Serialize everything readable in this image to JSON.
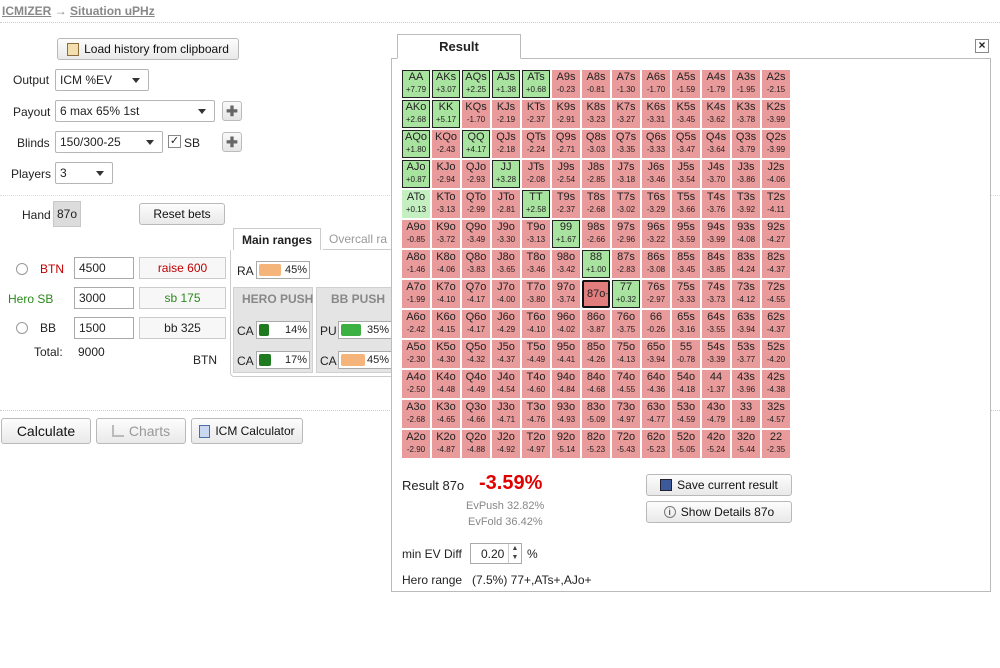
{
  "breadcrumb": {
    "home": "ICMIZER",
    "arrow": "→",
    "current": "Situation uPHz"
  },
  "left": {
    "load_button": "Load history from clipboard",
    "output_label": "Output",
    "output_value": "ICM %EV",
    "payout_label": "Payout",
    "payout_value": "6 max 65% 1st",
    "blinds_label": "Blinds",
    "blinds_value": "150/300-25",
    "sb_check_label": "SB",
    "players_label": "Players",
    "players_value": "3",
    "hand_label": "Hand",
    "hand_value": "87o",
    "reset_button": "Reset bets",
    "tabs": {
      "main": "Main ranges",
      "overcall": "Overcall ra"
    },
    "players": [
      {
        "name": "BTN",
        "stack": "4500",
        "bet": "raise 600"
      },
      {
        "name": "Hero  SB",
        "stack": "3000",
        "bet": "sb 175"
      },
      {
        "name": "BB",
        "stack": "1500",
        "bet": "bb 325"
      }
    ],
    "total_label": "Total:",
    "total_value": "9000",
    "btn_label": "BTN",
    "ra": {
      "label": "RA",
      "value": "45%"
    },
    "hero_push": {
      "title": "HERO PUSH",
      "rows": [
        {
          "label": "CA",
          "value": "14%"
        },
        {
          "label": "CA",
          "value": "17%"
        }
      ]
    },
    "bb_push": {
      "title": "BB PUSH",
      "rows": [
        {
          "label": "PU",
          "value": "35%"
        },
        {
          "label": "CA",
          "value": "45%"
        }
      ]
    },
    "calc_button": "Calculate",
    "charts_button": "Charts",
    "icm_button": "ICM Calculator"
  },
  "result": {
    "tab": "Result",
    "close": "×",
    "hand_label": "Result 87o",
    "value": "-3.59%",
    "ev_push": "EvPush 32.82%",
    "ev_fold": "EvFold 36.42%",
    "save_button": "Save current result",
    "details_button": "Show Details 87o",
    "min_ev_label": "min EV Diff",
    "min_ev_value": "0.20",
    "min_ev_unit": "%",
    "hero_range_label": "Hero range",
    "hero_range_value": "(7.5%) 77+,ATs+,AJo+"
  },
  "colors": {
    "positive": "#c4efc0",
    "negative": "#e99a9a",
    "result_value": "#e00000"
  },
  "matrix": [
    [
      [
        "AA",
        "+7.79"
      ],
      [
        "AKs",
        "+3.07"
      ],
      [
        "AQs",
        "+2.25"
      ],
      [
        "AJs",
        "+1.38"
      ],
      [
        "ATs",
        "+0.68"
      ],
      [
        "A9s",
        "-0.23"
      ],
      [
        "A8s",
        "-0.81"
      ],
      [
        "A7s",
        "-1.30"
      ],
      [
        "A6s",
        "-1.70"
      ],
      [
        "A5s",
        "-1.59"
      ],
      [
        "A4s",
        "-1.79"
      ],
      [
        "A3s",
        "-1.95"
      ],
      [
        "A2s",
        "-2.15"
      ]
    ],
    [
      [
        "AKo",
        "+2.68"
      ],
      [
        "KK",
        "+5.17"
      ],
      [
        "KQs",
        "-1.70"
      ],
      [
        "KJs",
        "-2.19"
      ],
      [
        "KTs",
        "-2.37"
      ],
      [
        "K9s",
        "-2.91"
      ],
      [
        "K8s",
        "-3.23"
      ],
      [
        "K7s",
        "-3.27"
      ],
      [
        "K6s",
        "-3.31"
      ],
      [
        "K5s",
        "-3.45"
      ],
      [
        "K4s",
        "-3.62"
      ],
      [
        "K3s",
        "-3.78"
      ],
      [
        "K2s",
        "-3.99"
      ]
    ],
    [
      [
        "AQo",
        "+1.80"
      ],
      [
        "KQo",
        "-2.43"
      ],
      [
        "QQ",
        "+4.17"
      ],
      [
        "QJs",
        "-2.18"
      ],
      [
        "QTs",
        "-2.24"
      ],
      [
        "Q9s",
        "-2.71"
      ],
      [
        "Q8s",
        "-3.03"
      ],
      [
        "Q7s",
        "-3.35"
      ],
      [
        "Q6s",
        "-3.33"
      ],
      [
        "Q5s",
        "-3.47"
      ],
      [
        "Q4s",
        "-3.64"
      ],
      [
        "Q3s",
        "-3.79"
      ],
      [
        "Q2s",
        "-3.99"
      ]
    ],
    [
      [
        "AJo",
        "+0.87"
      ],
      [
        "KJo",
        "-2.94"
      ],
      [
        "QJo",
        "-2.93"
      ],
      [
        "JJ",
        "+3.28"
      ],
      [
        "JTs",
        "-2.08"
      ],
      [
        "J9s",
        "-2.54"
      ],
      [
        "J8s",
        "-2.85"
      ],
      [
        "J7s",
        "-3.18"
      ],
      [
        "J6s",
        "-3.46"
      ],
      [
        "J5s",
        "-3.54"
      ],
      [
        "J4s",
        "-3.70"
      ],
      [
        "J3s",
        "-3.86"
      ],
      [
        "J2s",
        "-4.06"
      ]
    ],
    [
      [
        "ATo",
        "+0.13"
      ],
      [
        "KTo",
        "-3.13"
      ],
      [
        "QTo",
        "-2.99"
      ],
      [
        "JTo",
        "-2.81"
      ],
      [
        "TT",
        "+2.58"
      ],
      [
        "T9s",
        "-2.37"
      ],
      [
        "T8s",
        "-2.68"
      ],
      [
        "T7s",
        "-3.02"
      ],
      [
        "T6s",
        "-3.29"
      ],
      [
        "T5s",
        "-3.66"
      ],
      [
        "T4s",
        "-3.76"
      ],
      [
        "T3s",
        "-3.92"
      ],
      [
        "T2s",
        "-4.11"
      ]
    ],
    [
      [
        "A9o",
        "-0.85"
      ],
      [
        "K9o",
        "-3.72"
      ],
      [
        "Q9o",
        "-3.49"
      ],
      [
        "J9o",
        "-3.30"
      ],
      [
        "T9o",
        "-3.13"
      ],
      [
        "99",
        "+1.67"
      ],
      [
        "98s",
        "-2.66"
      ],
      [
        "97s",
        "-2.96"
      ],
      [
        "96s",
        "-3.22"
      ],
      [
        "95s",
        "-3.59"
      ],
      [
        "94s",
        "-3.99"
      ],
      [
        "93s",
        "-4.08"
      ],
      [
        "92s",
        "-4.27"
      ]
    ],
    [
      [
        "A8o",
        "-1.46"
      ],
      [
        "K8o",
        "-4.06"
      ],
      [
        "Q8o",
        "-3.83"
      ],
      [
        "J8o",
        "-3.65"
      ],
      [
        "T8o",
        "-3.46"
      ],
      [
        "98o",
        "-3.42"
      ],
      [
        "88",
        "+1.00"
      ],
      [
        "87s",
        "-2.83"
      ],
      [
        "86s",
        "-3.08"
      ],
      [
        "85s",
        "-3.45"
      ],
      [
        "84s",
        "-3.85"
      ],
      [
        "83s",
        "-4.24"
      ],
      [
        "82s",
        "-4.37"
      ]
    ],
    [
      [
        "A7o",
        "-1.99"
      ],
      [
        "K7o",
        "-4.10"
      ],
      [
        "Q7o",
        "-4.17"
      ],
      [
        "J7o",
        "-4.00"
      ],
      [
        "T7o",
        "-3.80"
      ],
      [
        "97o",
        "-3.74"
      ],
      [
        "87o",
        "-3.59"
      ],
      [
        "77",
        "+0.32"
      ],
      [
        "76s",
        "-2.97"
      ],
      [
        "75s",
        "-3.33"
      ],
      [
        "74s",
        "-3.73"
      ],
      [
        "73s",
        "-4.12"
      ],
      [
        "72s",
        "-4.55"
      ]
    ],
    [
      [
        "A6o",
        "-2.42"
      ],
      [
        "K6o",
        "-4.15"
      ],
      [
        "Q6o",
        "-4.17"
      ],
      [
        "J6o",
        "-4.29"
      ],
      [
        "T6o",
        "-4.10"
      ],
      [
        "96o",
        "-4.02"
      ],
      [
        "86o",
        "-3.87"
      ],
      [
        "76o",
        "-3.75"
      ],
      [
        "66",
        "-0.26"
      ],
      [
        "65s",
        "-3.16"
      ],
      [
        "64s",
        "-3.55"
      ],
      [
        "63s",
        "-3.94"
      ],
      [
        "62s",
        "-4.37"
      ]
    ],
    [
      [
        "A5o",
        "-2.30"
      ],
      [
        "K5o",
        "-4.30"
      ],
      [
        "Q5o",
        "-4.32"
      ],
      [
        "J5o",
        "-4.37"
      ],
      [
        "T5o",
        "-4.49"
      ],
      [
        "95o",
        "-4.41"
      ],
      [
        "85o",
        "-4.26"
      ],
      [
        "75o",
        "-4.13"
      ],
      [
        "65o",
        "-3.94"
      ],
      [
        "55",
        "-0.78"
      ],
      [
        "54s",
        "-3.39"
      ],
      [
        "53s",
        "-3.77"
      ],
      [
        "52s",
        "-4.20"
      ]
    ],
    [
      [
        "A4o",
        "-2.50"
      ],
      [
        "K4o",
        "-4.48"
      ],
      [
        "Q4o",
        "-4.49"
      ],
      [
        "J4o",
        "-4.54"
      ],
      [
        "T4o",
        "-4.60"
      ],
      [
        "94o",
        "-4.84"
      ],
      [
        "84o",
        "-4.68"
      ],
      [
        "74o",
        "-4.55"
      ],
      [
        "64o",
        "-4.36"
      ],
      [
        "54o",
        "-4.18"
      ],
      [
        "44",
        "-1.37"
      ],
      [
        "43s",
        "-3.96"
      ],
      [
        "42s",
        "-4.38"
      ]
    ],
    [
      [
        "A3o",
        "-2.68"
      ],
      [
        "K3o",
        "-4.65"
      ],
      [
        "Q3o",
        "-4.66"
      ],
      [
        "J3o",
        "-4.71"
      ],
      [
        "T3o",
        "-4.76"
      ],
      [
        "93o",
        "-4.93"
      ],
      [
        "83o",
        "-5.09"
      ],
      [
        "73o",
        "-4.97"
      ],
      [
        "63o",
        "-4.77"
      ],
      [
        "53o",
        "-4.59"
      ],
      [
        "43o",
        "-4.79"
      ],
      [
        "33",
        "-1.89"
      ],
      [
        "32s",
        "-4.57"
      ]
    ],
    [
      [
        "A2o",
        "-2.90"
      ],
      [
        "K2o",
        "-4.87"
      ],
      [
        "Q2o",
        "-4.88"
      ],
      [
        "J2o",
        "-4.92"
      ],
      [
        "T2o",
        "-4.97"
      ],
      [
        "92o",
        "-5.14"
      ],
      [
        "82o",
        "-5.23"
      ],
      [
        "72o",
        "-5.43"
      ],
      [
        "62o",
        "-5.23"
      ],
      [
        "52o",
        "-5.05"
      ],
      [
        "42o",
        "-5.24"
      ],
      [
        "32o",
        "-5.44"
      ],
      [
        "22",
        "-2.35"
      ]
    ]
  ],
  "pushed_hands": [
    "AA",
    "AKs",
    "AQs",
    "AJs",
    "ATs",
    "AKo",
    "KK",
    "AQo",
    "QQ",
    "AJo",
    "JJ",
    "TT",
    "99",
    "88",
    "77"
  ],
  "selected_hand": "87o"
}
